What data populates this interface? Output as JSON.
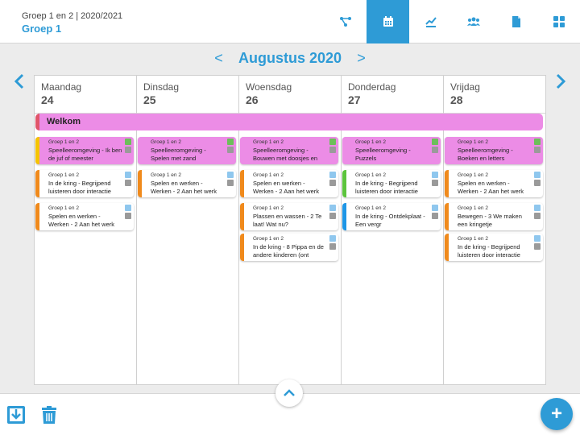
{
  "header": {
    "subtitle": "Groep 1 en 2 | 2020/2021",
    "title": "Groep 1"
  },
  "nav_icons": [
    {
      "name": "network-icon",
      "active": false
    },
    {
      "name": "calendar-icon",
      "active": true
    },
    {
      "name": "chart-icon",
      "active": false
    },
    {
      "name": "users-icon",
      "active": false
    },
    {
      "name": "document-icon",
      "active": false
    },
    {
      "name": "grid-icon",
      "active": false
    }
  ],
  "month": {
    "title": "Augustus 2020",
    "prev": "<",
    "next": ">"
  },
  "days": [
    {
      "name": "Maandag",
      "num": "24"
    },
    {
      "name": "Dinsdag",
      "num": "25"
    },
    {
      "name": "Woensdag",
      "num": "26"
    },
    {
      "name": "Donderdag",
      "num": "27"
    },
    {
      "name": "Vrijdag",
      "num": "28"
    }
  ],
  "banner": {
    "label": "Welkom"
  },
  "cards": [
    [
      {
        "group": "Groep 1 en 2",
        "title": "Speelleeromgeving - Ik ben de juf of meester",
        "color": "#f5c400",
        "pink": true
      },
      {
        "group": "Groep 1 en 2",
        "title": "In de kring - Begrijpend luisteren door interactie",
        "color": "#f08a1c",
        "pink": false
      },
      {
        "group": "Groep 1 en 2",
        "title": "Spelen en werken - Werken - 2 Aan het werk",
        "color": "#f08a1c",
        "pink": false
      }
    ],
    [
      {
        "group": "Groep 1 en 2",
        "title": "Speelleeromgeving - Spelen met zand",
        "color": "#ec8ce6",
        "pink": true
      },
      {
        "group": "Groep 1 en 2",
        "title": "Spelen en werken - Werken - 2 Aan het werk",
        "color": "#f08a1c",
        "pink": false
      }
    ],
    [
      {
        "group": "Groep 1 en 2",
        "title": "Speelleeromgeving - Bouwen met doosjes en",
        "color": "#ec8ce6",
        "pink": true
      },
      {
        "group": "Groep 1 en 2",
        "title": "Spelen en werken - Werken - 2 Aan het werk",
        "color": "#f08a1c",
        "pink": false
      },
      {
        "group": "Groep 1 en 2",
        "title": "Plassen en wassen - 2 Te laat! Wat nu?",
        "color": "#f08a1c",
        "pink": false
      },
      {
        "group": "Groep 1 en 2",
        "title": "In de kring - 8 Pippa en de andere kinderen (ont",
        "color": "#f08a1c",
        "pink": false
      }
    ],
    [
      {
        "group": "Groep 1 en 2",
        "title": "Speelleeromgeving - Puzzels",
        "color": "#ec8ce6",
        "pink": true
      },
      {
        "group": "Groep 1 en 2",
        "title": "In de kring - Begrijpend luisteren door interactie",
        "color": "#5cc43c",
        "pink": false
      },
      {
        "group": "Groep 1 en 2",
        "title": "In de kring - Ontdekplaat - Een vergr",
        "color": "#1e96e6",
        "pink": false
      }
    ],
    [
      {
        "group": "Groep 1 en 2",
        "title": "Speelleeromgeving - Boeken en letters",
        "color": "#ec8ce6",
        "pink": true
      },
      {
        "group": "Groep 1 en 2",
        "title": "Spelen en werken - Werken - 2 Aan het werk",
        "color": "#f08a1c",
        "pink": false
      },
      {
        "group": "Groep 1 en 2",
        "title": "Bewegen - 3 We maken een kringetje",
        "color": "#f08a1c",
        "pink": false
      },
      {
        "group": "Groep 1 en 2",
        "title": "In de kring - Begrijpend luisteren door interactie",
        "color": "#f08a1c",
        "pink": false
      }
    ]
  ],
  "colors": {
    "accent": "#2e9bd6",
    "pink": "#ec8ce6",
    "orange": "#f08a1c"
  }
}
